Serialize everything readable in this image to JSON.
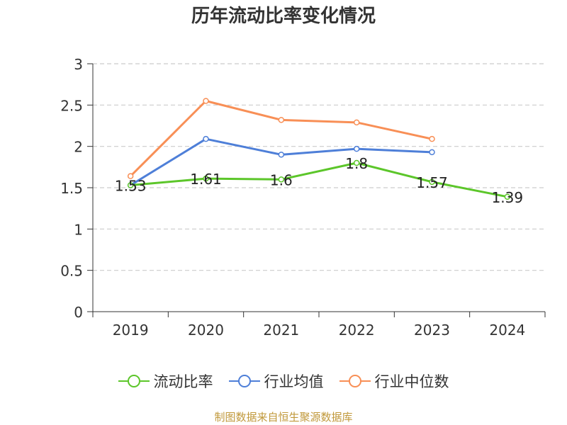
{
  "chart_data": {
    "type": "line",
    "title": "历年流动比率变化情况",
    "categories": [
      "2019",
      "2020",
      "2021",
      "2022",
      "2023",
      "2024"
    ],
    "y_ticks": [
      "0",
      "0.5",
      "1",
      "1.5",
      "2",
      "2.5",
      "3"
    ],
    "ylim": [
      0,
      3
    ],
    "grid": true,
    "legend_position": "bottom",
    "series": [
      {
        "name": "流动比率",
        "color": "#5cc62a",
        "values": [
          1.53,
          1.61,
          1.6,
          1.8,
          1.57,
          1.39
        ],
        "labels": [
          "1.53",
          "1.61",
          "1.6",
          "1.8",
          "1.57",
          "1.39"
        ]
      },
      {
        "name": "行业均值",
        "color": "#4e7fd8",
        "values": [
          1.53,
          2.09,
          1.9,
          1.97,
          1.93,
          null
        ]
      },
      {
        "name": "行业中位数",
        "color": "#f88f56",
        "values": [
          1.64,
          2.55,
          2.32,
          2.29,
          2.09,
          null
        ]
      }
    ]
  },
  "source_text": "制图数据来自恒生聚源数据库"
}
